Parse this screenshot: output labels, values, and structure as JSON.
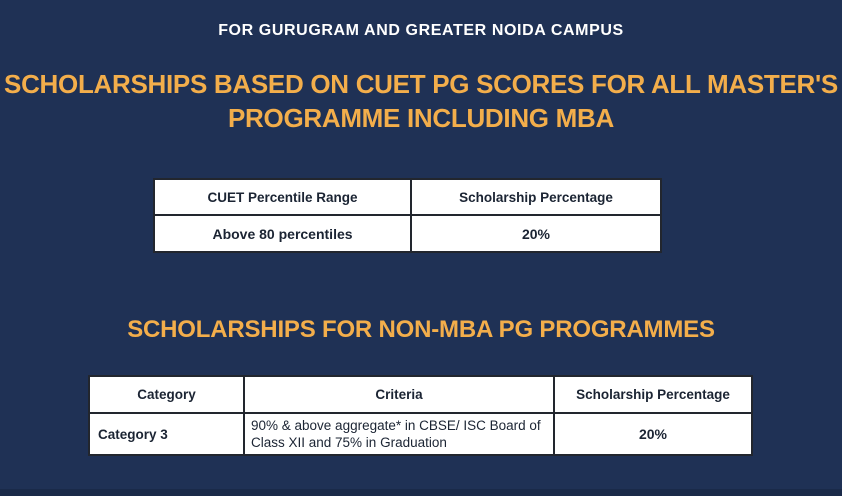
{
  "colors": {
    "background": "#1F3155",
    "accent_gold": "#F3AE4B",
    "heading_white": "#FFFFFF",
    "table_text": "#1B2433",
    "table_background": "#FFFFFF",
    "table_border": "#22262E"
  },
  "header": {
    "campus_line": "FOR GURUGRAM AND GREATER NOIDA CAMPUS",
    "title_line1": "SCHOLARSHIPS BASED ON CUET PG SCORES FOR ALL MASTER'S",
    "title_line2": "PROGRAMME INCLUDING MBA"
  },
  "cuet_table": {
    "headers": [
      "CUET Percentile Range",
      "Scholarship Percentage"
    ],
    "rows": [
      [
        "Above 80 percentiles",
        "20%"
      ]
    ]
  },
  "non_mba_section": {
    "title": "SCHOLARSHIPS FOR NON-MBA PG PROGRAMMES"
  },
  "non_mba_table": {
    "headers": [
      "Category",
      "Criteria",
      "Scholarship Percentage"
    ],
    "rows": [
      [
        "Category 3",
        "90% & above aggregate* in CBSE/ ISC Board of Class XII and 75% in Graduation",
        "20%"
      ]
    ]
  }
}
